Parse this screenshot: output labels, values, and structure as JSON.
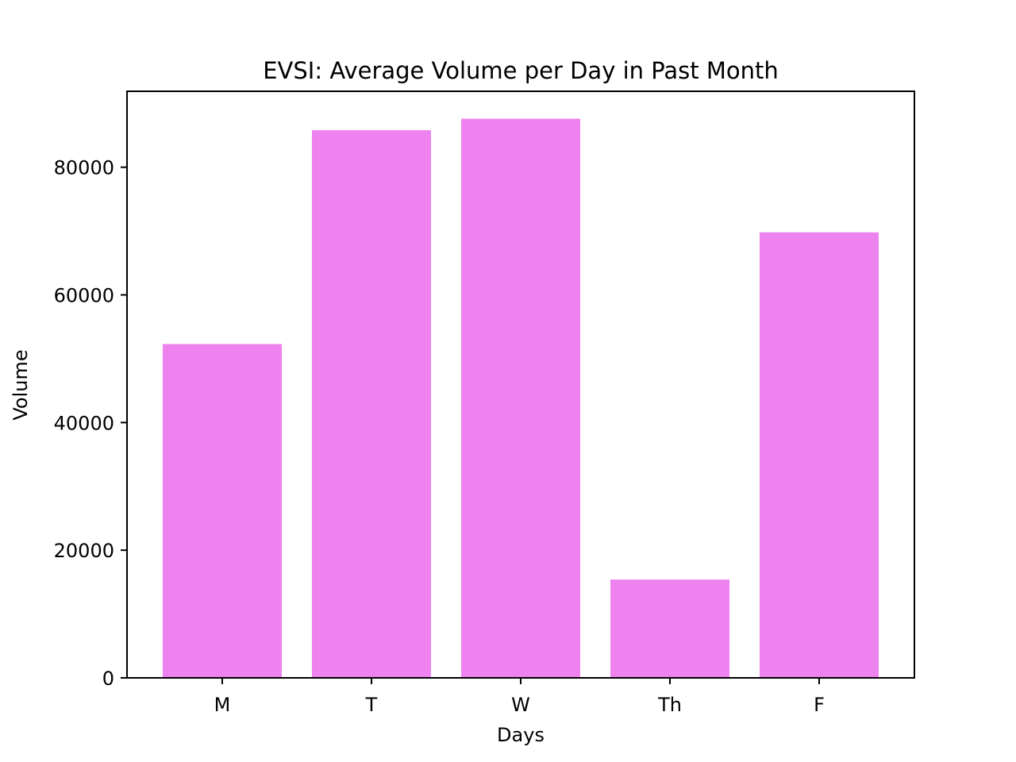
{
  "chart_data": {
    "type": "bar",
    "title": "EVSI: Average Volume per Day in Past Month",
    "xlabel": "Days",
    "ylabel": "Volume",
    "categories": [
      "M",
      "T",
      "W",
      "Th",
      "F"
    ],
    "values": [
      52300,
      85800,
      87600,
      15400,
      69800
    ],
    "ylim": [
      0,
      91900
    ],
    "yticks": [
      0,
      20000,
      40000,
      60000,
      80000
    ],
    "bar_color": "#ee82ee",
    "grid": false,
    "legend": "none"
  }
}
